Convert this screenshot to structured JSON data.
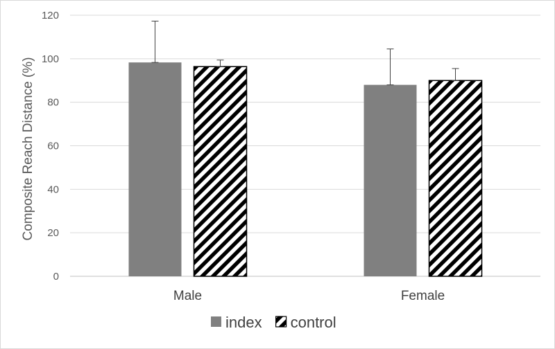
{
  "chart_data": {
    "type": "bar",
    "title": "",
    "xlabel": "",
    "ylabel": "Composite Reach Distance (%)",
    "ylim": [
      0,
      120
    ],
    "yticks": [
      0,
      20,
      40,
      60,
      80,
      100,
      120
    ],
    "grid": true,
    "legend_position": "bottom",
    "categories": [
      "Male",
      "Female"
    ],
    "series": [
      {
        "name": "index",
        "fill": "solid",
        "color": "#808080",
        "values": [
          98.3,
          88.0
        ],
        "error": [
          19.0,
          16.5
        ]
      },
      {
        "name": "control",
        "fill": "diagonal-stripes",
        "color": "#000000",
        "values": [
          96.4,
          90.0
        ],
        "error": [
          3.0,
          5.5
        ]
      }
    ]
  }
}
